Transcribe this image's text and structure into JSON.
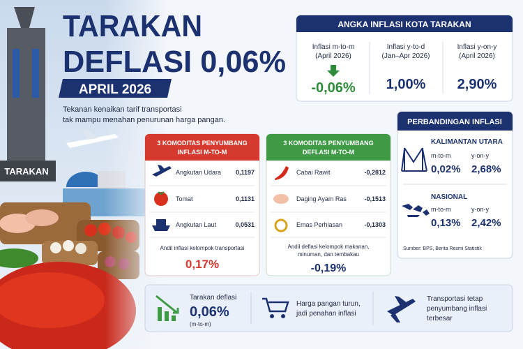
{
  "header": {
    "title_line1": "TARAKAN",
    "title_line2": "DEFLASI 0,06%",
    "period": "APRIL 2026",
    "subtitle": [
      "Tekanan kenaikan tarif transportasi",
      "tak mampu menahan penurunan harga pangan."
    ]
  },
  "photo_label": "TARAKAN",
  "inflation_panel": {
    "title": "ANGKA INFLASI KOTA TARAKAN",
    "items": [
      {
        "label": [
          "Inflasi m-to-m",
          "(April 2026)"
        ],
        "value": "-0,06%"
      },
      {
        "label": [
          "Inflasi y-to-d",
          "(Jan–Apr 2026)"
        ],
        "value": "1,00%"
      },
      {
        "label": [
          "Inflasi y-on-y",
          "(April 2026)"
        ],
        "value": "2,90%"
      }
    ]
  },
  "commodity_cards": [
    {
      "title": [
        "3 KOMODITAS PENYUMBANG",
        "INFLASI M-TO-M"
      ],
      "rows": [
        {
          "name": "Angkutan Udara",
          "value": "0,1197"
        },
        {
          "name": "Tomat",
          "value": "0,1131"
        },
        {
          "name": "Angkutan Laut",
          "value": "0,0531"
        }
      ],
      "note": [
        "Andil inflasi kelompok transportasi"
      ],
      "total": "0,17%"
    },
    {
      "title": [
        "3 KOMODITAS PENYUMBANG",
        "DEFLASI M-TO-M"
      ],
      "rows": [
        {
          "name": "Cabai Rawit",
          "value": "-0,2812"
        },
        {
          "name": "Daging Ayam Ras",
          "value": "-0,1513"
        },
        {
          "name": "Emas Perhiasan",
          "value": "-0,1303"
        }
      ],
      "note": [
        "Andil deflasi kelompok makanan,",
        "minuman, dan tembakau"
      ],
      "total": "-0,19%"
    }
  ],
  "comparison": {
    "title": "PERBANDINGAN INFLASI",
    "regions": [
      {
        "name": "KALIMANTAN UTARA",
        "items": [
          {
            "label": "m-to-m",
            "value": "0,02%"
          },
          {
            "label": "y-on-y",
            "value": "2,68%"
          }
        ]
      },
      {
        "name": "NASIONAL",
        "items": [
          {
            "label": "m-to-m",
            "value": "0,13%"
          },
          {
            "label": "y-on-y",
            "value": "2,42%"
          }
        ]
      }
    ],
    "source": "Sumber: BPS, Berita Resmi Statistik"
  },
  "highlights": [
    {
      "lines": [
        "Tarakan deflasi"
      ],
      "value": "0,06%",
      "sub": "(m-to-m)"
    },
    {
      "lines": [
        "Harga pangan turun,",
        "jadi penahan inflasi"
      ]
    },
    {
      "lines": [
        "Transportasi tetap",
        "penyumbang inflasi",
        "terbesar"
      ]
    }
  ]
}
